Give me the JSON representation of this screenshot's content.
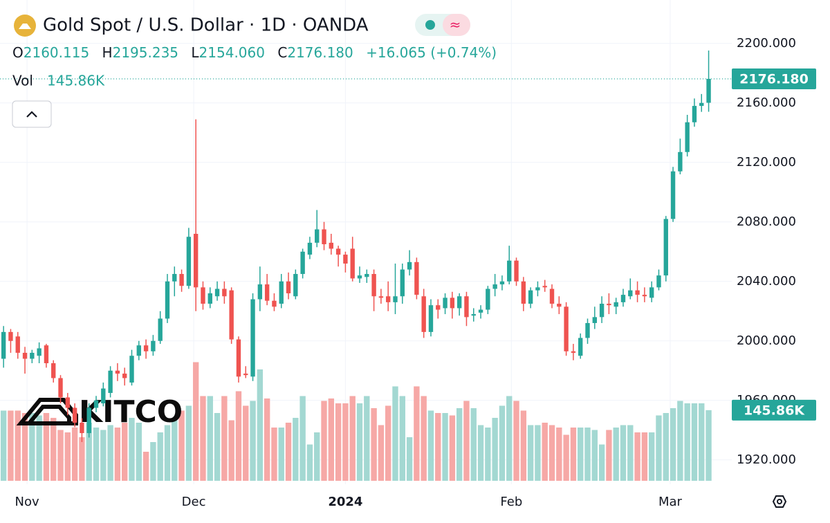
{
  "header": {
    "title": "Gold Spot / U.S. Dollar · 1D · OANDA",
    "open_label": "O",
    "open": "2160.115",
    "high_label": "H",
    "high": "2195.235",
    "low_label": "L",
    "low": "2154.060",
    "close_label": "C",
    "close": "2176.180",
    "change": "+16.065 (+0.74%)",
    "volume_label": "Vol",
    "volume": "145.86K",
    "watermark": "KITCO"
  },
  "chart_data": {
    "type": "candlestick",
    "open": [
      1988,
      2006,
      2003,
      1992,
      1988,
      1990,
      1997,
      1985,
      1975,
      1962,
      1955,
      1945,
      1938,
      1955,
      1958,
      1965,
      1980,
      1978,
      1972,
      1990,
      1997,
      1993,
      2000,
      2015,
      2040,
      2045,
      2037,
      2072,
      2036,
      2025,
      2030,
      2035,
      2034,
      2001,
      1978,
      1976,
      2028,
      2038,
      2027,
      2025,
      2040,
      2030,
      2045,
      2058,
      2066,
      2075,
      2066,
      2062,
      2058,
      2062,
      2042,
      2043,
      2045,
      2030,
      2030,
      2026,
      2030,
      2048,
      2053,
      2030,
      2006,
      2024,
      2022,
      2029,
      2022,
      2030,
      2017,
      2019,
      2021,
      2035,
      2038,
      2040,
      2054,
      2040,
      2025,
      2034,
      2037,
      2035,
      2025,
      2023,
      1993,
      1990,
      2002,
      2012,
      2016,
      2025,
      2023,
      2026,
      2030,
      2034,
      2031,
      2029,
      2036,
      2044,
      2082,
      2114,
      2127,
      2147,
      2158,
      2160.115
    ],
    "high": [
      2010,
      2008,
      2006,
      1996,
      1994,
      1999,
      1998,
      1987,
      1977,
      1965,
      1958,
      1948,
      1958,
      1963,
      1972,
      1983,
      1985,
      1982,
      1994,
      2000,
      2001,
      2004,
      2020,
      2045,
      2050,
      2048,
      2076,
      2149,
      2040,
      2036,
      2040,
      2040,
      2036,
      2003,
      1983,
      2032,
      2050,
      2045,
      2032,
      2045,
      2046,
      2048,
      2062,
      2070,
      2088,
      2080,
      2072,
      2064,
      2060,
      2070,
      2050,
      2048,
      2048,
      2035,
      2040,
      2052,
      2052,
      2061,
      2056,
      2035,
      2028,
      2028,
      2032,
      2033,
      2032,
      2033,
      2022,
      2024,
      2037,
      2045,
      2044,
      2064,
      2056,
      2043,
      2036,
      2040,
      2041,
      2038,
      2030,
      2026,
      1998,
      2005,
      2015,
      2023,
      2030,
      2032,
      2029,
      2035,
      2042,
      2040,
      2036,
      2040,
      2048,
      2084,
      2117,
      2136,
      2152,
      2163,
      2166,
      2195.235
    ],
    "low": [
      1982,
      1992,
      1988,
      1978,
      1985,
      1985,
      1982,
      1972,
      1958,
      1950,
      1942,
      1932,
      1935,
      1952,
      1956,
      1962,
      1973,
      1970,
      1970,
      1987,
      1988,
      1990,
      1998,
      2012,
      2030,
      2033,
      2035,
      2020,
      2021,
      2022,
      2027,
      2025,
      1998,
      1972,
      1975,
      1973,
      2020,
      2024,
      2020,
      2022,
      2028,
      2028,
      2042,
      2055,
      2063,
      2061,
      2058,
      2050,
      2046,
      2040,
      2039,
      2039,
      2020,
      2025,
      2020,
      2018,
      2025,
      2044,
      2028,
      2002,
      2003,
      2015,
      2018,
      2015,
      2017,
      2010,
      2013,
      2015,
      2018,
      2030,
      2034,
      2038,
      2037,
      2020,
      2022,
      2030,
      2033,
      2022,
      2018,
      1990,
      1987,
      1988,
      1998,
      2008,
      2012,
      2018,
      2018,
      2023,
      2028,
      2026,
      2026,
      2026,
      2034,
      2040,
      2080,
      2112,
      2124,
      2144,
      2154,
      2154.06
    ],
    "close": [
      2006,
      2000,
      1992,
      1988,
      1992,
      1995,
      1985,
      1975,
      1962,
      1955,
      1945,
      1938,
      1955,
      1960,
      1968,
      1980,
      1978,
      1975,
      1990,
      1997,
      1993,
      2000,
      2015,
      2040,
      2045,
      2037,
      2070,
      2036,
      2025,
      2032,
      2035,
      2030,
      2001,
      1976,
      1977,
      2028,
      2038,
      2027,
      2023,
      2040,
      2032,
      2045,
      2060,
      2066,
      2075,
      2065,
      2062,
      2058,
      2052,
      2042,
      2044,
      2045,
      2030,
      2029,
      2026,
      2030,
      2048,
      2053,
      2031,
      2006,
      2024,
      2021,
      2029,
      2022,
      2030,
      2016,
      2018,
      2021,
      2035,
      2038,
      2040,
      2054,
      2040,
      2025,
      2034,
      2036,
      2036,
      2025,
      2023,
      1993,
      1992,
      2002,
      2012,
      2016,
      2025,
      2024,
      2026,
      2031,
      2034,
      2031,
      2030,
      2036,
      2044,
      2082,
      2114,
      2127,
      2147,
      2158,
      2160,
      2176.18
    ],
    "volume": [
      145,
      145,
      145,
      140,
      140,
      135,
      140,
      130,
      105,
      100,
      110,
      90,
      120,
      110,
      105,
      115,
      110,
      120,
      130,
      120,
      60,
      80,
      100,
      115,
      125,
      145,
      155,
      245,
      175,
      175,
      140,
      175,
      125,
      185,
      155,
      165,
      230,
      170,
      110,
      110,
      120,
      130,
      175,
      75,
      100,
      165,
      170,
      160,
      160,
      175,
      160,
      175,
      150,
      115,
      155,
      195,
      175,
      90,
      195,
      175,
      145,
      140,
      140,
      135,
      150,
      165,
      150,
      115,
      110,
      130,
      155,
      175,
      165,
      145,
      115,
      115,
      120,
      115,
      110,
      95,
      110,
      110,
      110,
      105,
      75,
      105,
      110,
      115,
      115,
      100,
      100,
      100,
      135,
      140,
      150,
      165,
      160,
      160,
      160,
      145.86
    ],
    "price_tag": "2176.180",
    "volume_tag": "145.86K",
    "up_color": "#26a69a",
    "down_color": "#ef5350",
    "volume_up_color": "#a3d8d2",
    "volume_down_color": "#f6a8a6",
    "ylim": [
      1905,
      2212
    ],
    "vlim": [
      0,
      250
    ],
    "xlim": [
      -0.5,
      100.5
    ],
    "yticks": [
      {
        "value": 1920,
        "label": "1920.000"
      },
      {
        "value": 1960,
        "label": "1960.000"
      },
      {
        "value": 2000,
        "label": "2000.000"
      },
      {
        "value": 2040,
        "label": "2040.000"
      },
      {
        "value": 2080,
        "label": "2080.000"
      },
      {
        "value": 2120,
        "label": "2120.000"
      },
      {
        "value": 2160,
        "label": "2160.000"
      },
      {
        "value": 2200,
        "label": "2200.000"
      }
    ],
    "xticks": [
      {
        "value": 3.3,
        "label": "Nov"
      },
      {
        "value": 26.7,
        "label": "Dec"
      },
      {
        "value": 48,
        "label": "2024"
      },
      {
        "value": 71.3,
        "label": "Feb"
      },
      {
        "value": 93.6,
        "label": "Mar"
      }
    ],
    "grid": true
  }
}
